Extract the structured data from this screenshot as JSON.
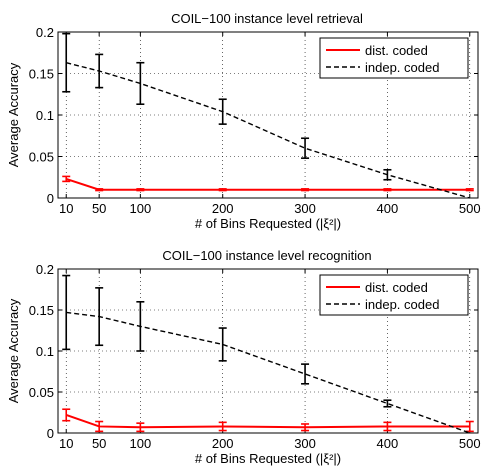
{
  "chart_data": [
    {
      "type": "line",
      "title": "COIL−100 instance level retrieval",
      "xlabel": "# of Bins Requested (|ξ²|)",
      "ylabel": "Average Accuracy",
      "xlim": [
        0,
        510
      ],
      "ylim": [
        0,
        0.2
      ],
      "x": [
        10,
        50,
        100,
        200,
        300,
        400,
        500
      ],
      "xticks": [
        "10",
        "50",
        "100",
        "200",
        "300",
        "400",
        "500"
      ],
      "yticks": [
        "0",
        "0.05",
        "0.1",
        "0.15",
        "0.2"
      ],
      "grid": true,
      "legend_position": "top-right",
      "series": [
        {
          "name": "dist. coded",
          "color": "#ff0000",
          "style": "solid",
          "values": [
            0.023,
            0.01,
            0.01,
            0.01,
            0.01,
            0.01,
            0.01
          ],
          "errors": [
            0.003,
            0.001,
            0.001,
            0.001,
            0.001,
            0.001,
            0.001
          ]
        },
        {
          "name": "indep. coded",
          "color": "#000000",
          "style": "dashed",
          "values": [
            0.163,
            0.153,
            0.138,
            0.104,
            0.06,
            0.028,
            0.0
          ],
          "errors": [
            0.035,
            0.02,
            0.025,
            0.015,
            0.012,
            0.006,
            null
          ]
        }
      ]
    },
    {
      "type": "line",
      "title": "COIL−100 instance level recognition",
      "xlabel": "# of Bins Requested (|ξ²|)",
      "ylabel": "Average Accuracy",
      "xlim": [
        0,
        510
      ],
      "ylim": [
        0,
        0.2
      ],
      "x": [
        10,
        50,
        100,
        200,
        300,
        400,
        500
      ],
      "xticks": [
        "10",
        "50",
        "100",
        "200",
        "300",
        "400",
        "500"
      ],
      "yticks": [
        "0",
        "0.05",
        "0.1",
        "0.15",
        "0.2"
      ],
      "grid": true,
      "legend_position": "top-right",
      "series": [
        {
          "name": "dist. coded",
          "color": "#ff0000",
          "style": "solid",
          "values": [
            0.022,
            0.008,
            0.007,
            0.008,
            0.007,
            0.008,
            0.008
          ],
          "errors": [
            0.007,
            0.006,
            0.005,
            0.005,
            0.004,
            0.005,
            0.006
          ]
        },
        {
          "name": "indep. coded",
          "color": "#000000",
          "style": "dashed",
          "values": [
            0.147,
            0.142,
            0.13,
            0.108,
            0.072,
            0.036,
            0.0
          ],
          "errors": [
            0.045,
            0.035,
            0.03,
            0.02,
            0.012,
            0.004,
            null
          ]
        }
      ]
    }
  ]
}
